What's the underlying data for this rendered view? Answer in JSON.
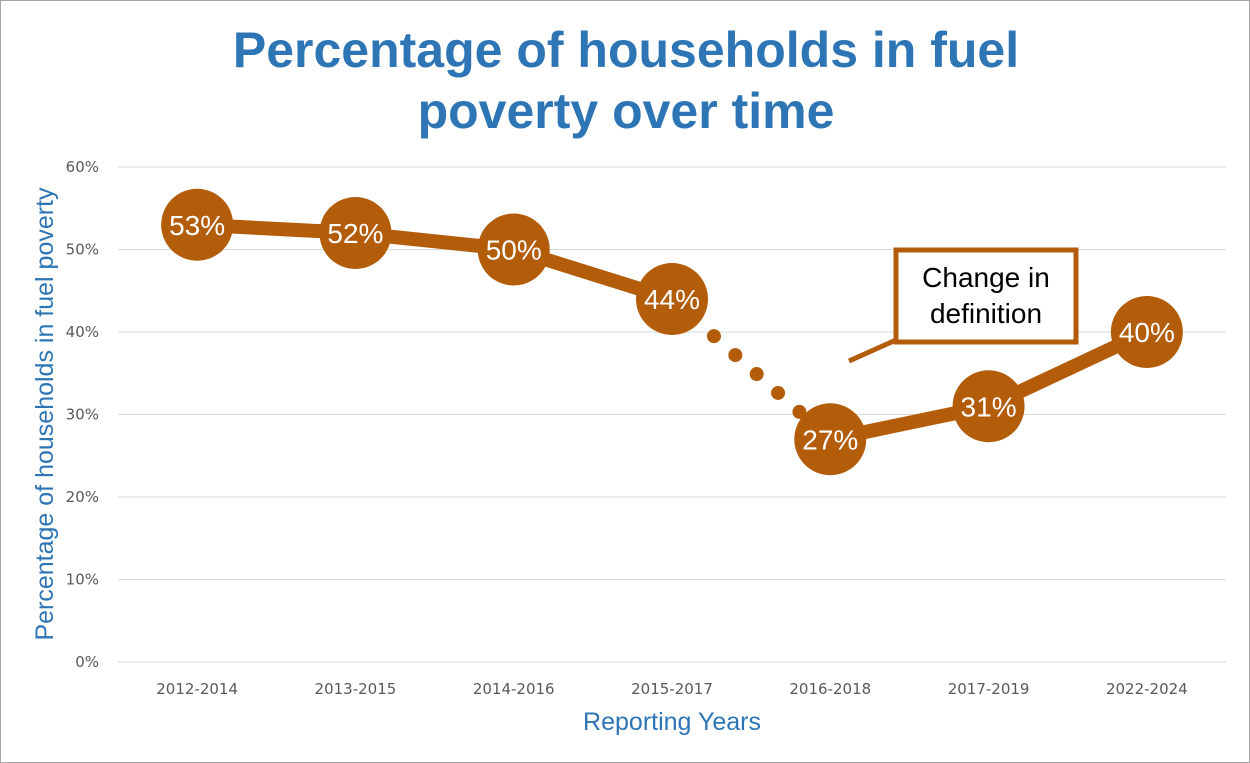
{
  "chart_data": {
    "type": "line",
    "title_lines": [
      "Percentage of households in fuel",
      "poverty over time"
    ],
    "xlabel": "Reporting Years",
    "ylabel": "Percentage of households in fuel poverty",
    "categories": [
      "2012-2014",
      "2013-2015",
      "2014-2016",
      "2015-2017",
      "2016-2018",
      "2017-2019",
      "2022-2024"
    ],
    "values": [
      53,
      52,
      50,
      44,
      27,
      31,
      40
    ],
    "data_labels": [
      "53%",
      "52%",
      "50%",
      "44%",
      "27%",
      "31%",
      "40%"
    ],
    "ylim": [
      0,
      60
    ],
    "yticks": [
      0,
      10,
      20,
      30,
      40,
      50,
      60
    ],
    "ytick_labels": [
      "0%",
      "10%",
      "20%",
      "30%",
      "40%",
      "50%",
      "60%"
    ],
    "grid": true,
    "dotted_segment": "2015-2017 to 2016-2018",
    "annotation": {
      "lines": [
        "Change in",
        "definition"
      ]
    },
    "colors": {
      "series": "#b35c0a",
      "title": "#2e75b6",
      "grid": "#d9d9d9",
      "tick_text": "#595959"
    }
  }
}
